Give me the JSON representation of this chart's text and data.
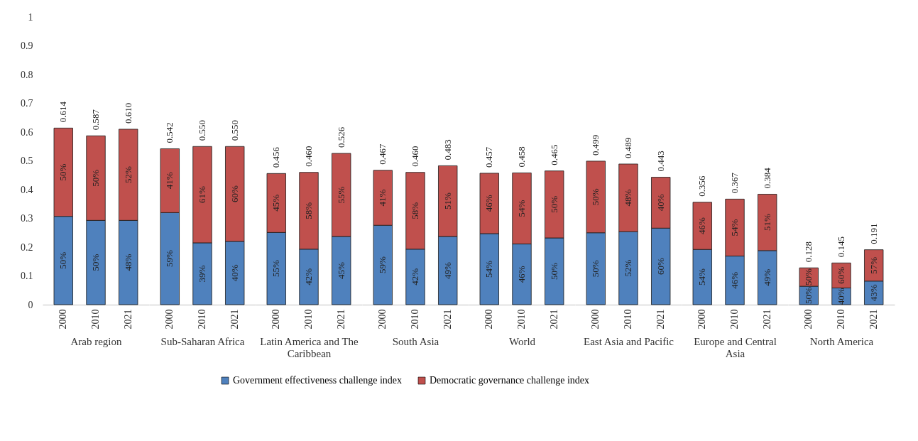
{
  "chart_data": [
    {
      "type": "bar",
      "xlabel": "Arab region",
      "categories": [
        "2000",
        "2010",
        "2021"
      ],
      "stacked": true,
      "ylim": [
        0,
        1
      ],
      "yticks": [
        0,
        0.1,
        0.2,
        0.3,
        0.4,
        0.5,
        0.6,
        0.7,
        0.8,
        0.9,
        1
      ],
      "legend": "bottom",
      "totals": [
        "0.614",
        "0.587",
        "0.610"
      ],
      "series": [
        {
          "name": "Government effectiveness challenge index",
          "color": "#4f81bd",
          "values": [
            0.307,
            0.293,
            0.293
          ]
        },
        {
          "name": "Democratic governance challenge index",
          "color": "#c0504d",
          "values": [
            0.307,
            0.294,
            0.317
          ]
        }
      ],
      "annotations": [
        "50%",
        "50%",
        "48%",
        "50%",
        "50%",
        "52%"
      ]
    },
    {
      "type": "bar",
      "xlabel": "Sub-Saharan Africa",
      "categories": [
        "2000",
        "2010",
        "2021"
      ],
      "stacked": true,
      "ylim": [
        0,
        1
      ],
      "tick_labels": "x",
      "totals": [
        "0.542",
        "0.550",
        "0.550"
      ],
      "series": [
        {
          "color": "#4f81bd",
          "values": [
            0.32,
            0.215,
            0.22
          ]
        },
        {
          "color": "#c0504d",
          "values": [
            0.222,
            0.335,
            0.33
          ]
        }
      ],
      "annotations": [
        "59%",
        "39%",
        "40%",
        "41%",
        "61%",
        "60%"
      ]
    },
    {
      "type": "bar",
      "xlabel": "Latin America and The Caribbean",
      "categories": [
        "2000",
        "2010",
        "2021"
      ],
      "stacked": true,
      "ylim": [
        0,
        1
      ],
      "tick_labels": "x",
      "totals": [
        "0.456",
        "0.460",
        "0.526"
      ],
      "series": [
        {
          "color": "#4f81bd",
          "values": [
            0.251,
            0.193,
            0.237
          ]
        },
        {
          "color": "#c0504d",
          "values": [
            0.205,
            0.267,
            0.289
          ]
        }
      ],
      "annotations": [
        "55%",
        "42%",
        "45%",
        "45%",
        "58%",
        "55%"
      ]
    },
    {
      "type": "bar",
      "xlabel": "South Asia",
      "categories": [
        "2000",
        "2010",
        "2021"
      ],
      "stacked": true,
      "ylim": [
        0,
        1
      ],
      "tick_labels": "x",
      "totals": [
        "0.467",
        "0.460",
        "0.483"
      ],
      "series": [
        {
          "color": "#4f81bd",
          "values": [
            0.276,
            0.193,
            0.237
          ]
        },
        {
          "color": "#c0504d",
          "values": [
            0.191,
            0.267,
            0.246
          ]
        }
      ],
      "annotations": [
        "59%",
        "42%",
        "49%",
        "41%",
        "58%",
        "51%"
      ]
    },
    {
      "type": "bar",
      "xlabel": "World",
      "categories": [
        "2000",
        "2010",
        "2021"
      ],
      "stacked": true,
      "ylim": [
        0,
        1
      ],
      "tick_labels": "x",
      "totals": [
        "0.457",
        "0.458",
        "0.465"
      ],
      "series": [
        {
          "color": "#4f81bd",
          "values": [
            0.247,
            0.211,
            0.232
          ]
        },
        {
          "color": "#c0504d",
          "values": [
            0.21,
            0.247,
            0.233
          ]
        }
      ],
      "annotations": [
        "54%",
        "46%",
        "50%",
        "46%",
        "54%",
        "50%"
      ]
    },
    {
      "type": "bar",
      "xlabel": "East Asia and Pacific",
      "categories": [
        "2000",
        "2010",
        "2021"
      ],
      "stacked": true,
      "ylim": [
        0,
        1
      ],
      "tick_labels": "x",
      "totals": [
        "0.499",
        "0.489",
        "0.443"
      ],
      "series": [
        {
          "color": "#4f81bd",
          "values": [
            0.25,
            0.254,
            0.266
          ]
        },
        {
          "color": "#c0504d",
          "values": [
            0.249,
            0.235,
            0.177
          ]
        }
      ],
      "annotations": [
        "50%",
        "52%",
        "60%",
        "50%",
        "48%",
        "40%"
      ]
    },
    {
      "type": "bar",
      "xlabel": "Europe and Central Asia",
      "categories": [
        "2000",
        "2010",
        "2021"
      ],
      "stacked": true,
      "ylim": [
        0,
        1
      ],
      "tick_labels": "x",
      "totals": [
        "0.356",
        "0.367",
        "0.384"
      ],
      "series": [
        {
          "color": "#4f81bd",
          "values": [
            0.192,
            0.169,
            0.188
          ]
        },
        {
          "color": "#c0504d",
          "values": [
            0.164,
            0.198,
            0.196
          ]
        }
      ],
      "annotations": [
        "54%",
        "46%",
        "49%",
        "46%",
        "54%",
        "51%"
      ]
    },
    {
      "type": "bar",
      "xlabel": "North America",
      "categories": [
        "2000",
        "2010",
        "2021"
      ],
      "stacked": true,
      "ylim": [
        0,
        1
      ],
      "tick_labels": "x",
      "totals": [
        "0.128",
        "0.145",
        "0.191"
      ],
      "series": [
        {
          "color": "#4f81bd",
          "values": [
            0.064,
            0.058,
            0.082
          ]
        },
        {
          "color": "#c0504d",
          "values": [
            0.064,
            0.087,
            0.109
          ]
        }
      ],
      "annotations": [
        "50%",
        "40%",
        "43%",
        "50%",
        "60%",
        "57%"
      ]
    }
  ]
}
